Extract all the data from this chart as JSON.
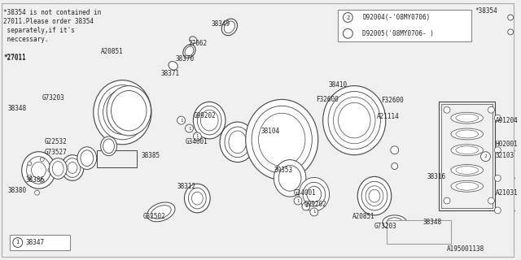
{
  "bg_color": "#f0f0f0",
  "line_color": "#444444",
  "text_color": "#222222",
  "note_text_lines": [
    "*38354 is not contained in",
    "27011.Please order 38354",
    " separately,if it's",
    " neccessary."
  ],
  "legend_text1": "D92004(-'08MY0706)",
  "legend_text2": "D92005('08MY0706- )",
  "catalog_id": "A195001138"
}
